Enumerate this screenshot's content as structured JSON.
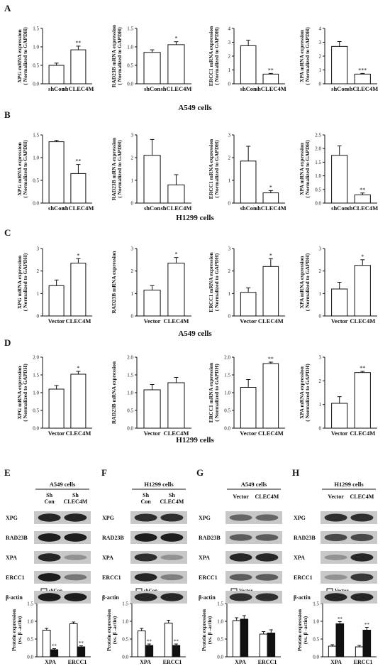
{
  "figure": {
    "panel_letters": [
      "A",
      "B",
      "C",
      "D",
      "E",
      "F",
      "G",
      "H"
    ],
    "row_captions": {
      "A": "A549 cells",
      "B": "H1299 cells",
      "C": "A549 cells",
      "D": "H1299 cells"
    },
    "colors": {
      "bar_fill": "#ffffff",
      "bar_dark": "#111111",
      "axis": "#111111",
      "band": "#222222",
      "blot_bg": "#c8c8c8"
    }
  },
  "chart_data": [
    {
      "panel": "A",
      "type": "bar",
      "ylabel": "XPG mRNA expression",
      "ylabel2": "( Normalized to GAPDH)",
      "categories": [
        "shCon",
        "shCLEC4M"
      ],
      "values": [
        0.5,
        0.92
      ],
      "errors": [
        0.06,
        0.1
      ],
      "sig": [
        "",
        "**"
      ],
      "yticks": [
        "0.0",
        "0.5",
        "1.0",
        "1.5"
      ],
      "ylim": [
        0,
        1.5
      ]
    },
    {
      "panel": "A",
      "type": "bar",
      "ylabel": "RAD23B mRNA expression",
      "ylabel2": "( Normalized to GAPDH)",
      "categories": [
        "shCon",
        "shCLEC4M"
      ],
      "values": [
        0.85,
        1.06
      ],
      "errors": [
        0.07,
        0.08
      ],
      "sig": [
        "",
        "*"
      ],
      "yticks": [
        "0.0",
        "0.5",
        "1.0",
        "1.5"
      ],
      "ylim": [
        0,
        1.5
      ]
    },
    {
      "panel": "A",
      "type": "bar",
      "ylabel": "ERCC1 mRNA expression",
      "ylabel2": "( Normalized to GAPDH)",
      "categories": [
        "shCon",
        "shCLEC4M"
      ],
      "values": [
        2.75,
        0.7
      ],
      "errors": [
        0.4,
        0.05
      ],
      "sig": [
        "",
        "**"
      ],
      "yticks": [
        "0",
        "1",
        "2",
        "3",
        "4"
      ],
      "ylim": [
        0,
        4
      ]
    },
    {
      "panel": "A",
      "type": "bar",
      "ylabel": "XPA mRNA expression",
      "ylabel2": "( Normalized to GAPDH)",
      "categories": [
        "shCon",
        "shCLEC4M"
      ],
      "values": [
        2.7,
        0.7
      ],
      "errors": [
        0.35,
        0.05
      ],
      "sig": [
        "",
        "***"
      ],
      "yticks": [
        "0",
        "1",
        "2",
        "3",
        "4"
      ],
      "ylim": [
        0,
        4
      ]
    },
    {
      "panel": "B",
      "type": "bar",
      "ylabel": "XPG mRNA expression",
      "ylabel2": "( Normalized to GAPDH)",
      "categories": [
        "shCon",
        "shCLEC4M"
      ],
      "values": [
        1.35,
        0.65
      ],
      "errors": [
        0.03,
        0.2
      ],
      "sig": [
        "",
        "**"
      ],
      "yticks": [
        "0.0",
        "0.5",
        "1.0",
        "1.5"
      ],
      "ylim": [
        0,
        1.5
      ]
    },
    {
      "panel": "B",
      "type": "bar",
      "ylabel": "RAD23B mRNA expression",
      "ylabel2": "( Normalized to GAPDH)",
      "categories": [
        "shCon",
        "shCLEC4M"
      ],
      "values": [
        2.1,
        0.8
      ],
      "errors": [
        0.7,
        0.45
      ],
      "sig": [
        "",
        ""
      ],
      "yticks": [
        "0",
        "1",
        "2",
        "3"
      ],
      "ylim": [
        0,
        3
      ]
    },
    {
      "panel": "B",
      "type": "bar",
      "ylabel": "ERCC1 mRNA expression",
      "ylabel2": "( Normalized to GAPDH)",
      "categories": [
        "shCon",
        "shCLEC4M"
      ],
      "values": [
        1.85,
        0.45
      ],
      "errors": [
        0.65,
        0.1
      ],
      "sig": [
        "",
        "*"
      ],
      "yticks": [
        "0",
        "1",
        "2",
        "3"
      ],
      "ylim": [
        0,
        3
      ]
    },
    {
      "panel": "B",
      "type": "bar",
      "ylabel": "XPA mRNA expression",
      "ylabel2": "( Normalized to GAPDH)",
      "categories": [
        "shCon",
        "shCLEC4M"
      ],
      "values": [
        1.75,
        0.3
      ],
      "errors": [
        0.35,
        0.07
      ],
      "sig": [
        "",
        "**"
      ],
      "yticks": [
        "0.0",
        "0.5",
        "1.0",
        "1.5",
        "2.0",
        "2.5"
      ],
      "ylim": [
        0,
        2.5
      ]
    },
    {
      "panel": "C",
      "type": "bar",
      "ylabel": "XPG mRNA expression",
      "ylabel2": "( Normalized to GAPDH)",
      "categories": [
        "Vector",
        "CLEC4M"
      ],
      "values": [
        1.35,
        2.35
      ],
      "errors": [
        0.25,
        0.2
      ],
      "sig": [
        "",
        "*"
      ],
      "yticks": [
        "0",
        "1",
        "2",
        "3"
      ],
      "ylim": [
        0,
        3
      ]
    },
    {
      "panel": "C",
      "type": "bar",
      "ylabel": "RAD23B mRNA expression",
      "ylabel2": "",
      "categories": [
        "Vector",
        "CLEC4M"
      ],
      "values": [
        1.15,
        2.35
      ],
      "errors": [
        0.2,
        0.25
      ],
      "sig": [
        "",
        "*"
      ],
      "yticks": [
        "0",
        "1",
        "2",
        "3"
      ],
      "ylim": [
        0,
        3
      ]
    },
    {
      "panel": "C",
      "type": "bar",
      "ylabel": "ERCC1 mRNA expression",
      "ylabel2": "( Normalized to GAPDH)",
      "categories": [
        "Vector",
        "CLEC4M"
      ],
      "values": [
        1.05,
        2.2
      ],
      "errors": [
        0.2,
        0.35
      ],
      "sig": [
        "",
        "*"
      ],
      "yticks": [
        "0",
        "1",
        "2",
        "3"
      ],
      "ylim": [
        0,
        3
      ]
    },
    {
      "panel": "C",
      "type": "bar",
      "ylabel": "XPA mRNA expression",
      "ylabel2": "( Normalized to GAPDH)",
      "categories": [
        "Vector",
        "CLEC4M"
      ],
      "values": [
        1.2,
        2.25
      ],
      "errors": [
        0.3,
        0.25
      ],
      "sig": [
        "",
        "*"
      ],
      "yticks": [
        "0",
        "1",
        "2",
        "3"
      ],
      "ylim": [
        0,
        3
      ]
    },
    {
      "panel": "D",
      "type": "bar",
      "ylabel": "XPG mRNA expression",
      "ylabel2": "( Normalized to GAPDH)",
      "categories": [
        "Vector",
        "CLEC4M"
      ],
      "values": [
        1.1,
        1.52
      ],
      "errors": [
        0.1,
        0.08
      ],
      "sig": [
        "",
        "*"
      ],
      "yticks": [
        "0.0",
        "0.5",
        "1.0",
        "1.5",
        "2.0"
      ],
      "ylim": [
        0,
        2
      ]
    },
    {
      "panel": "D",
      "type": "bar",
      "ylabel": "RAD23B mRNA expression",
      "ylabel2": "",
      "categories": [
        "Vector",
        "CLEC4M"
      ],
      "values": [
        1.08,
        1.28
      ],
      "errors": [
        0.15,
        0.15
      ],
      "sig": [
        "",
        ""
      ],
      "yticks": [
        "0.0",
        "0.5",
        "1.0",
        "1.5",
        "2.0"
      ],
      "ylim": [
        0,
        2
      ]
    },
    {
      "panel": "D",
      "type": "bar",
      "ylabel": "ERCC1 mRNA expression",
      "ylabel2": "( Normalized to GAPDH)",
      "categories": [
        "Vector",
        "CLEC4M"
      ],
      "values": [
        1.15,
        1.82
      ],
      "errors": [
        0.22,
        0.04
      ],
      "sig": [
        "",
        "**"
      ],
      "yticks": [
        "0.0",
        "0.5",
        "1.0",
        "1.5",
        "2.0"
      ],
      "ylim": [
        0,
        2
      ]
    },
    {
      "panel": "D",
      "type": "bar",
      "ylabel": "XPA mRNA expression",
      "ylabel2": "( Normalized to GAPDH)",
      "categories": [
        "Vector",
        "CLEC4M"
      ],
      "values": [
        1.05,
        2.35
      ],
      "errors": [
        0.28,
        0.05
      ],
      "sig": [
        "",
        "**"
      ],
      "yticks": [
        "0",
        "1",
        "2",
        "3"
      ],
      "ylim": [
        0,
        3
      ]
    },
    {
      "panel": "E",
      "type": "bar",
      "ylabel": "Protein expression",
      "ylabel2": "(vs. β -actin)",
      "categories": [
        "XPA",
        "ERCC1"
      ],
      "series": [
        {
          "name": "shCon",
          "values": [
            0.75,
            0.93
          ],
          "errors": [
            0.05,
            0.05
          ]
        },
        {
          "name": "shCLEC4M",
          "values": [
            0.2,
            0.28
          ],
          "errors": [
            0.03,
            0.03
          ]
        }
      ],
      "sig": [
        "**",
        "**"
      ],
      "yticks": [
        "0.0",
        "0.5",
        "1.0",
        "1.5"
      ],
      "ylim": [
        0,
        1.5
      ]
    },
    {
      "panel": "F",
      "type": "bar",
      "ylabel": "Protein expression",
      "ylabel2": "(vs. β -actin)",
      "categories": [
        "XPA",
        "ERCC1"
      ],
      "series": [
        {
          "name": "shCon",
          "values": [
            0.73,
            0.95
          ],
          "errors": [
            0.07,
            0.08
          ]
        },
        {
          "name": "shCLEC4M",
          "values": [
            0.32,
            0.32
          ],
          "errors": [
            0.04,
            0.04
          ]
        }
      ],
      "sig": [
        "**",
        "**"
      ],
      "yticks": [
        "0.0",
        "0.5",
        "1.0",
        "1.5"
      ],
      "ylim": [
        0,
        1.5
      ]
    },
    {
      "panel": "G",
      "type": "bar",
      "ylabel": "Protein expression",
      "ylabel2": "(vs. β -actin)",
      "categories": [
        "XPA",
        "ERCC1"
      ],
      "series": [
        {
          "name": "Vector",
          "values": [
            1.02,
            0.64
          ],
          "errors": [
            0.08,
            0.07
          ]
        },
        {
          "name": "CLEC4M",
          "values": [
            1.06,
            0.67
          ],
          "errors": [
            0.1,
            0.09
          ]
        }
      ],
      "sig": [
        "",
        ""
      ],
      "yticks": [
        "0.0",
        "0.5",
        "1.0",
        "1.5"
      ],
      "ylim": [
        0,
        1.5
      ]
    },
    {
      "panel": "H",
      "type": "bar",
      "ylabel": "Protein expression",
      "ylabel2": "(vs. β -actin)",
      "categories": [
        "XPA",
        "ERCC1"
      ],
      "series": [
        {
          "name": "Vector",
          "values": [
            0.3,
            0.28
          ],
          "errors": [
            0.04,
            0.04
          ]
        },
        {
          "name": "CLEC4M",
          "values": [
            0.93,
            0.75
          ],
          "errors": [
            0.06,
            0.08
          ]
        }
      ],
      "sig": [
        "**",
        "**"
      ],
      "yticks": [
        "0.0",
        "0.5",
        "1.0",
        "1.5"
      ],
      "ylim": [
        0,
        1.5
      ]
    }
  ],
  "blots": [
    {
      "panel": "E",
      "title": "A549 cells",
      "lanes": [
        [
          "Sh",
          "Con"
        ],
        [
          "Sh",
          "CLEC4M"
        ]
      ],
      "rows": [
        "XPG",
        "RAD23B",
        "XPA",
        "ERCC1",
        "β-actin"
      ],
      "intensity": [
        [
          0.9,
          0.9
        ],
        [
          0.95,
          0.95
        ],
        [
          0.9,
          0.3
        ],
        [
          0.95,
          0.45
        ],
        [
          0.95,
          0.95
        ]
      ]
    },
    {
      "panel": "F",
      "title": "H1299 cells",
      "lanes": [
        [
          "Sh",
          "Con"
        ],
        [
          "Sh",
          "CLEC4M"
        ]
      ],
      "rows": [
        "XPG",
        "RAD23B",
        "XPA",
        "ERCC1",
        "β-actin"
      ],
      "intensity": [
        [
          0.85,
          0.85
        ],
        [
          0.95,
          0.95
        ],
        [
          0.85,
          0.3
        ],
        [
          0.9,
          0.4
        ],
        [
          0.9,
          0.9
        ]
      ]
    },
    {
      "panel": "G",
      "title": "A549 cells",
      "lanes": [
        [
          "Vector"
        ],
        [
          "CLEC4M"
        ]
      ],
      "rows": [
        "XPG",
        "RAD23B",
        "XPA",
        "ERCC1",
        "β-actin"
      ],
      "intensity": [
        [
          0.55,
          0.55
        ],
        [
          0.6,
          0.6
        ],
        [
          0.9,
          0.9
        ],
        [
          0.6,
          0.6
        ],
        [
          0.85,
          0.85
        ]
      ]
    },
    {
      "panel": "H",
      "title": "H1299 cells",
      "lanes": [
        [
          "Vector"
        ],
        [
          "CLEC4M"
        ]
      ],
      "rows": [
        "XPG",
        "RAD23B",
        "XPA",
        "ERCC1",
        "β-actin"
      ],
      "intensity": [
        [
          0.85,
          0.85
        ],
        [
          0.7,
          0.7
        ],
        [
          0.3,
          0.9
        ],
        [
          0.3,
          0.8
        ],
        [
          0.9,
          0.9
        ]
      ]
    }
  ]
}
